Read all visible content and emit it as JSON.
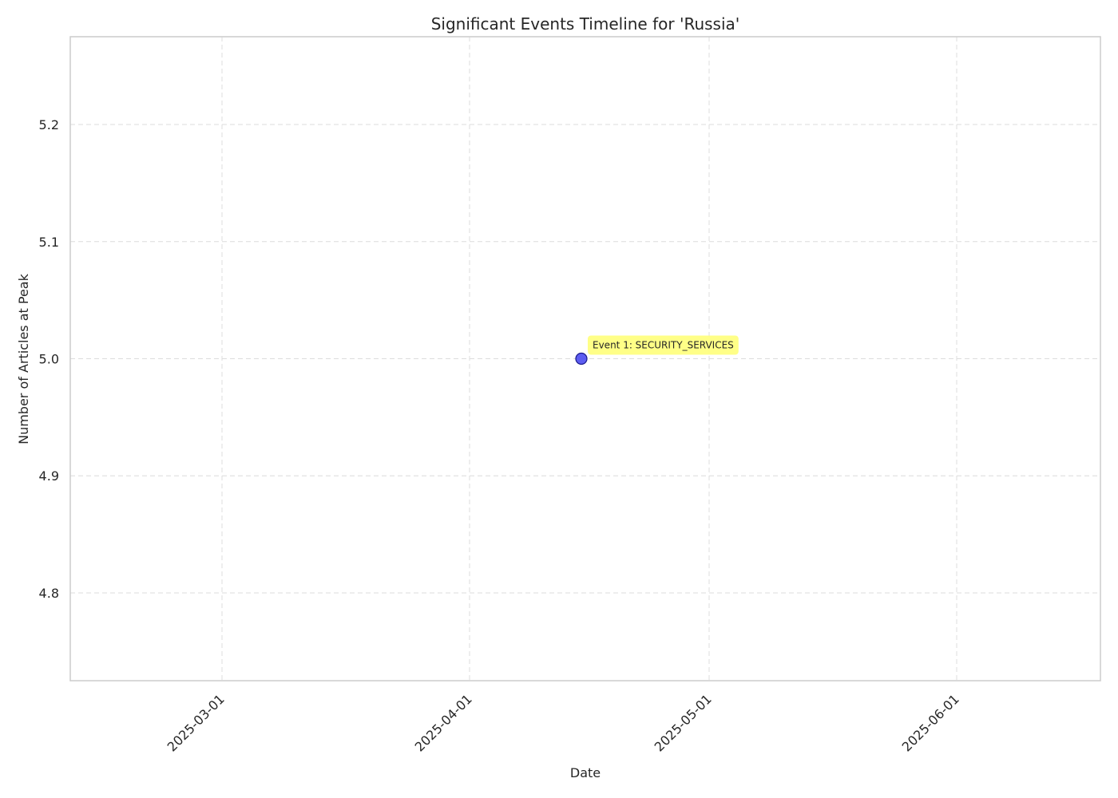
{
  "chart_data": {
    "type": "scatter",
    "title": "Significant Events Timeline for 'Russia'",
    "xlabel": "Date",
    "ylabel": "Number of Articles at Peak",
    "x_axis_type": "date",
    "xlim": [
      "2025-02-10",
      "2025-06-19"
    ],
    "ylim": [
      4.725,
      5.275
    ],
    "x_ticks": [
      "2025-03-01",
      "2025-04-01",
      "2025-05-01",
      "2025-06-01"
    ],
    "y_ticks": [
      4.8,
      4.9,
      5.0,
      5.1,
      5.2
    ],
    "y_tick_labels": [
      "4.8",
      "4.9",
      "5.0",
      "5.1",
      "5.2"
    ],
    "grid": true,
    "points": [
      {
        "x": "2025-04-15",
        "y": 5,
        "label": "Event 1: SECURITY_SERVICES"
      }
    ],
    "colors": {
      "point_fill": "#4b4bf0",
      "point_edge": "#1a1a8c",
      "annotation_bg": "#ffff7a",
      "grid": "#dcdcdc",
      "frame": "#cccccc"
    }
  }
}
